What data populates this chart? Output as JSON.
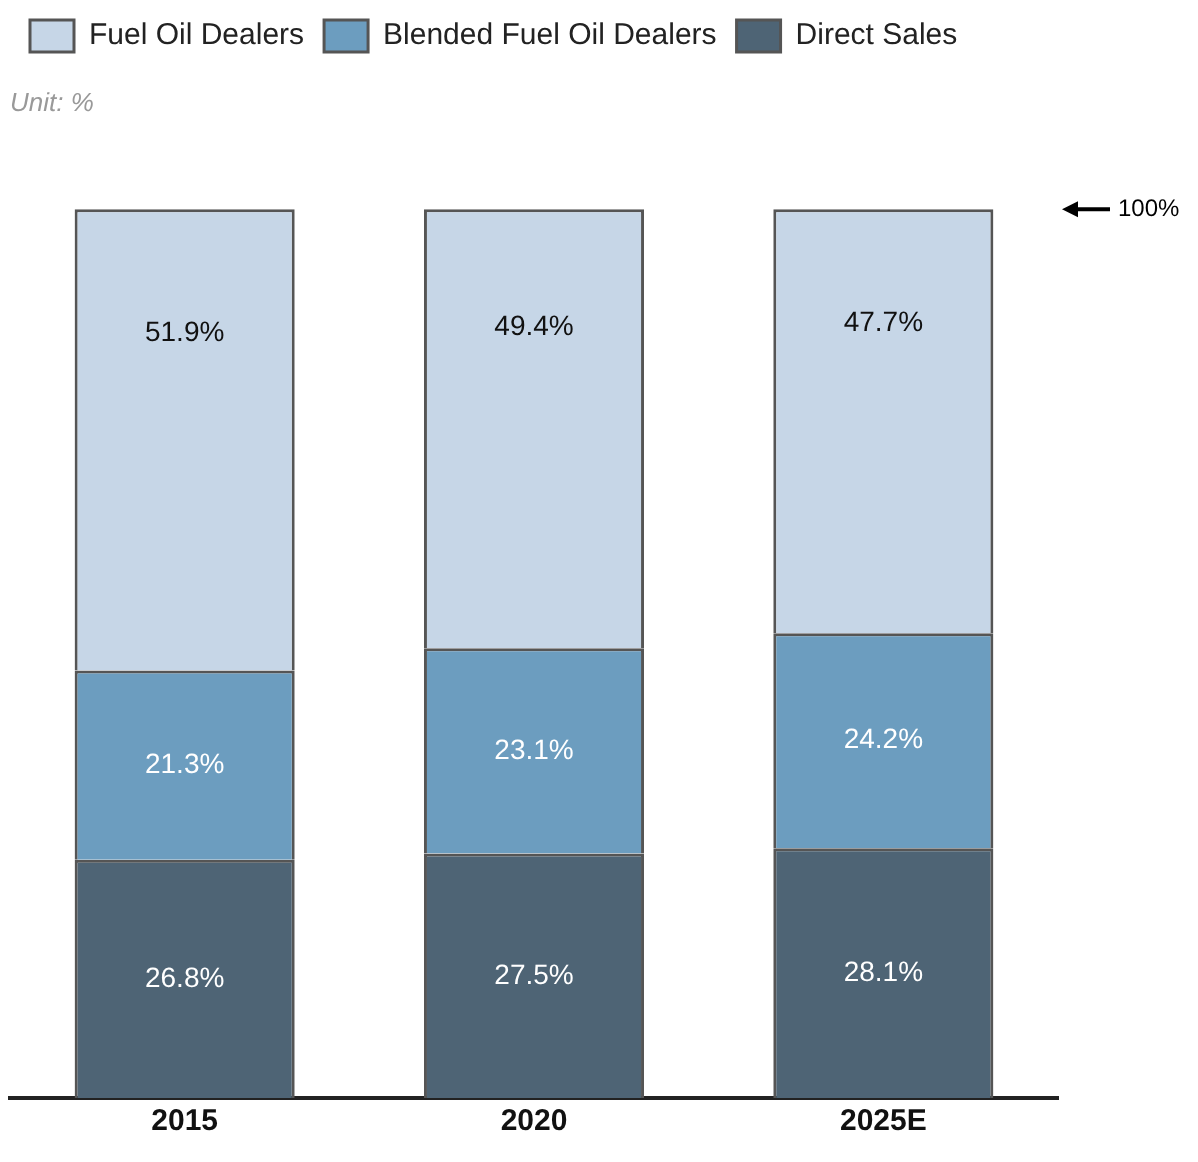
{
  "chart_data": {
    "type": "bar",
    "stacked": true,
    "subtitle": "Unit: %",
    "categories": [
      "2015",
      "2020",
      "2025E"
    ],
    "series": [
      {
        "name": "Direct Sales",
        "color": "#4e6475",
        "values": [
          26.8,
          27.5,
          28.1
        ],
        "value_labels": [
          "26.8%",
          "27.5%",
          "28.1%"
        ]
      },
      {
        "name": "Blended Fuel Oil Dealers",
        "color": "#6c9dbf",
        "values": [
          21.3,
          23.1,
          24.2
        ],
        "value_labels": [
          "21.3%",
          "23.1%",
          "24.2%"
        ]
      },
      {
        "name": "Fuel Oil Dealers",
        "color": "#c6d6e7",
        "values": [
          51.9,
          49.4,
          47.7
        ],
        "value_labels": [
          "51.9%",
          "49.4%",
          "47.7%"
        ]
      }
    ],
    "ylim": [
      0,
      100
    ],
    "tick_labels": "x",
    "grid": false,
    "legend": "top left",
    "annotations": [
      "100%"
    ]
  }
}
